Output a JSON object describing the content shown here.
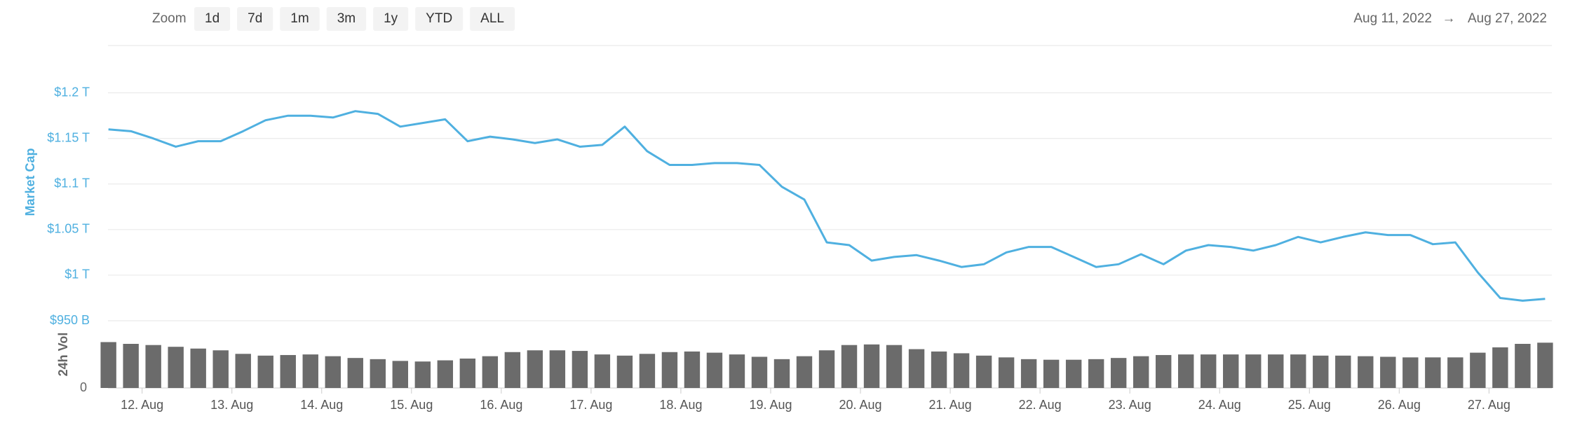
{
  "ui": {
    "zoom_label": "Zoom",
    "zoom_buttons": [
      "1d",
      "7d",
      "1m",
      "3m",
      "1y",
      "YTD",
      "ALL"
    ],
    "date_from": "Aug 11, 2022",
    "date_arrow": "→",
    "date_to": "Aug 27, 2022"
  },
  "chart_data": {
    "type": "line",
    "ylabel": "Market Cap",
    "y2label": "24h Vol",
    "x": [
      11.625,
      11.875,
      12.125,
      12.375,
      12.625,
      12.875,
      13.125,
      13.375,
      13.625,
      13.875,
      14.125,
      14.375,
      14.625,
      14.875,
      15.125,
      15.375,
      15.625,
      15.875,
      16.125,
      16.375,
      16.625,
      16.875,
      17.125,
      17.375,
      17.625,
      17.875,
      18.125,
      18.375,
      18.625,
      18.875,
      19.125,
      19.375,
      19.625,
      19.875,
      20.125,
      20.375,
      20.625,
      20.875,
      21.125,
      21.375,
      21.625,
      21.875,
      22.125,
      22.375,
      22.625,
      22.875,
      23.125,
      23.375,
      23.625,
      23.875,
      24.125,
      24.375,
      24.625,
      24.875,
      25.125,
      25.375,
      25.625,
      25.875,
      26.125,
      26.375,
      26.625,
      26.875,
      27.125,
      27.375,
      27.625
    ],
    "series": [
      {
        "color": "#4fb0e0",
        "values": [
          1160,
          1158,
          1150,
          1141,
          1147,
          1147,
          1158,
          1170,
          1175,
          1175,
          1173,
          1180,
          1177,
          1163,
          1167,
          1171,
          1147,
          1152,
          1149,
          1145,
          1149,
          1141,
          1143,
          1163,
          1136,
          1121,
          1121,
          1123,
          1123,
          1121,
          1097,
          1083,
          1036,
          1033,
          1016,
          1020,
          1022,
          1016,
          1009,
          1012,
          1025,
          1031,
          1031,
          1020,
          1009,
          1012,
          1023,
          1012,
          1027,
          1033,
          1031,
          1027,
          1033,
          1042,
          1036,
          1042,
          1047,
          1044,
          1044,
          1034,
          1036,
          1003,
          975,
          972,
          974
        ]
      },
      {
        "color": "#6b6b6b",
        "axis": "y2",
        "values": [
          78,
          75,
          73,
          70,
          67,
          64,
          58,
          55,
          56,
          57,
          54,
          51,
          49,
          46,
          45,
          47,
          50,
          54,
          61,
          64,
          64,
          63,
          57,
          55,
          58,
          61,
          62,
          60,
          57,
          53,
          49,
          54,
          64,
          73,
          74,
          73,
          66,
          62,
          59,
          55,
          52,
          49,
          48,
          48,
          49,
          51,
          54,
          56,
          57,
          57,
          57,
          57,
          57,
          57,
          55,
          55,
          54,
          53,
          52,
          52,
          52,
          60,
          69,
          75,
          77
        ]
      }
    ],
    "xlim": [
      11.62,
      27.7
    ],
    "xticks": [
      {
        "value": 12,
        "label": "12. Aug"
      },
      {
        "value": 13,
        "label": "13. Aug"
      },
      {
        "value": 14,
        "label": "14. Aug"
      },
      {
        "value": 15,
        "label": "15. Aug"
      },
      {
        "value": 16,
        "label": "16. Aug"
      },
      {
        "value": 17,
        "label": "17. Aug"
      },
      {
        "value": 18,
        "label": "18. Aug"
      },
      {
        "value": 19,
        "label": "19. Aug"
      },
      {
        "value": 20,
        "label": "20. Aug"
      },
      {
        "value": 21,
        "label": "21. Aug"
      },
      {
        "value": 22,
        "label": "22. Aug"
      },
      {
        "value": 23,
        "label": "23. Aug"
      },
      {
        "value": 24,
        "label": "24. Aug"
      },
      {
        "value": 25,
        "label": "25. Aug"
      },
      {
        "value": 26,
        "label": "26. Aug"
      },
      {
        "value": 27,
        "label": "27. Aug"
      }
    ],
    "ylim": [
      950,
      1252
    ],
    "yticks": [
      {
        "value": 950,
        "label": "$950 B"
      },
      {
        "value": 1000,
        "label": "$1 T"
      },
      {
        "value": 1050,
        "label": "$1.05 T"
      },
      {
        "value": 1100,
        "label": "$1.1 T"
      },
      {
        "value": 1150,
        "label": "$1.15 T"
      },
      {
        "value": 1200,
        "label": "$1.2 T"
      }
    ],
    "y2lim": [
      0,
      100
    ],
    "y2ticks": [
      0
    ],
    "grid": true
  }
}
